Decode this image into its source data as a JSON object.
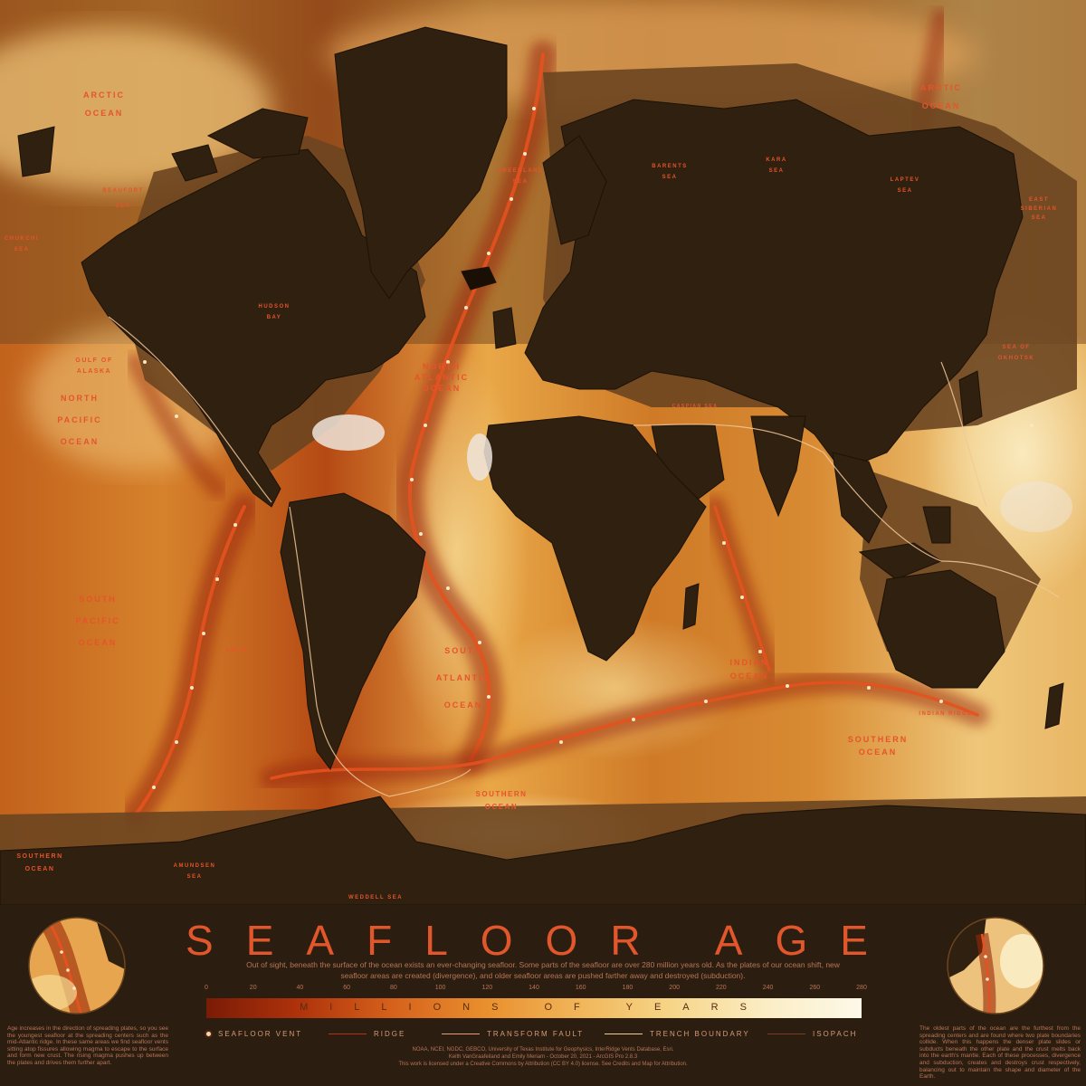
{
  "title": "SEAFLOOR AGE",
  "intro": "Out of sight, beneath the surface of the ocean exists an ever-changing seafloor. Some parts of the seafloor are over 280 million years old. As the plates of our ocean shift, new seafloor areas are created (divergence), and older seafloor areas are pushed farther away and destroyed (subduction).",
  "colorbar": {
    "label": "MILLIONS OF YEARS",
    "ticks": [
      "0",
      "20",
      "40",
      "60",
      "80",
      "100",
      "120",
      "140",
      "160",
      "180",
      "200",
      "220",
      "240",
      "260",
      "280"
    ],
    "range": [
      0,
      280
    ],
    "colors": [
      "#7a1b06",
      "#d6621c",
      "#f1b65a",
      "#fdf8e8"
    ]
  },
  "legend": [
    {
      "label": "SEAFLOOR VENT",
      "symbol": "dot",
      "color": "#f3d7b0"
    },
    {
      "label": "RIDGE",
      "symbol": "line",
      "color": "#b5311c"
    },
    {
      "label": "TRANSFORM FAULT",
      "symbol": "line",
      "color": "#e89a7c"
    },
    {
      "label": "TRENCH BOUNDARY",
      "symbol": "line",
      "color": "#f3c89a"
    },
    {
      "label": "ISOPACH",
      "symbol": "line",
      "color": "#7b3d22"
    }
  ],
  "credits": {
    "line1": "NOAA, NCEI, NGDC, GEBCO, University of Texas Institute for Geophysics, InterRidge Vents Database, Esri.",
    "line2": "Keith VanGraafeiland and Emily Meriam - October 20, 2021 - ArcGIS Pro 2.8.3",
    "line3": "This work is licensed under a Creative Commons by Attribution (CC BY 4.0) license. See Credits and Map for Attribution."
  },
  "left_note": "Age increases in the direction of spreading plates, so you see the youngest seafloor at the spreading centers such as the mid-Atlantic ridge. In these same areas we find seafloor vents sitting atop fissures allowing magma to escape to the surface and form new crust. The rising magma pushes up between the plates and drives them further apart.",
  "right_note": "The oldest parts of the ocean are the furthest from the spreading centers and are found where two plate boundaries collide. When this happens the denser plate slides or subducts beneath the other plate and the crust melts back into the earth's mantle. Each of these processes, divergence and subduction, creates and destroys crust respectively, balancing out to maintain the shape and diameter of the Earth.",
  "map_labels": {
    "arctic_ocean_w": [
      "ARCTIC",
      "OCEAN"
    ],
    "arctic_ocean_e": [
      "ARCTIC",
      "OCEAN"
    ],
    "beaufort_sea": [
      "BEAUFORT",
      "SEA"
    ],
    "chukchi_sea": [
      "CHUKCHI",
      "SEA"
    ],
    "hudson_bay": [
      "HUDSON",
      "BAY"
    ],
    "gulf_of_alaska": [
      "GULF OF",
      "ALASKA"
    ],
    "north_pacific": [
      "NORTH",
      "PACIFIC",
      "OCEAN"
    ],
    "south_pacific": [
      "SOUTH",
      "PACIFIC",
      "OCEAN"
    ],
    "southern_ocean_w": [
      "SOUTHERN",
      "OCEAN"
    ],
    "north_atlantic": [
      "NORTH",
      "ATLANTIC",
      "OCEAN"
    ],
    "south_atlantic": [
      "SOUTH",
      "ATLANTIC",
      "OCEAN"
    ],
    "indian_ocean": [
      "INDIAN",
      "OCEAN"
    ],
    "southern_ocean_c": [
      "SOUTHERN",
      "OCEAN"
    ],
    "southern_ocean_e": [
      "SOUTHERN",
      "OCEAN"
    ],
    "greenland_sea": [
      "GREENLAND",
      "SEA"
    ],
    "barents_sea": [
      "BARENTS",
      "SEA"
    ],
    "kara_sea": [
      "KARA",
      "SEA"
    ],
    "laptev_sea": [
      "LAPTEV",
      "SEA"
    ],
    "east_siberian_sea": [
      "EAST",
      "SIBERIAN",
      "SEA"
    ],
    "sea_of_okhotsk": [
      "SEA OF",
      "OKHOTSK"
    ],
    "amundsen_sea": [
      "AMUNDSEN",
      "SEA"
    ],
    "weddell_sea": "WEDDELL SEA",
    "indian_ridge": "INDIAN RIDGE",
    "chile": "CHILE",
    "caspian_sea": "CASPIAN SEA"
  }
}
